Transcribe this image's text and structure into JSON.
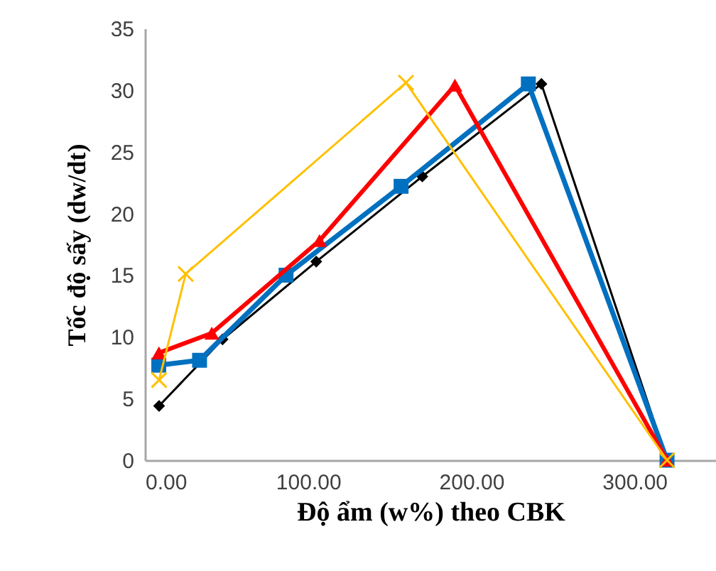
{
  "chart_data": {
    "type": "line",
    "xlabel": "Độ ẩm (w%) theo CBK",
    "ylabel": "Tốc độ sấy (dw/dt)",
    "xlim": [
      0,
      350
    ],
    "xticks": [
      {
        "value": 0,
        "label": "0.00"
      },
      {
        "value": 100,
        "label": "100.00"
      },
      {
        "value": 200,
        "label": "200.00"
      },
      {
        "value": 300,
        "label": "300.00"
      }
    ],
    "ylim": [
      0,
      35
    ],
    "yticks": [
      0,
      5,
      10,
      15,
      20,
      25,
      30,
      35
    ],
    "grid": false,
    "series": [
      {
        "color": "#000000",
        "marker": "diamond",
        "x": [
          8.7,
          47.6,
          105,
          170,
          243,
          320
        ],
        "values": [
          4.4,
          9.8,
          16.1,
          23,
          30.5,
          0
        ]
      },
      {
        "color": "#0070c0",
        "marker": "square",
        "x": [
          8.5,
          33.5,
          86.5,
          157,
          235,
          320
        ],
        "values": [
          7.7,
          8.1,
          15,
          22.2,
          30.5,
          0
        ]
      },
      {
        "color": "#ff0000",
        "marker": "triangle",
        "x": [
          8.6,
          41,
          107,
          190,
          320
        ],
        "values": [
          8.7,
          10.3,
          17.8,
          30.4,
          0
        ]
      },
      {
        "color": "#ffc000",
        "marker": "cross",
        "x": [
          8.7,
          25,
          160,
          320
        ],
        "values": [
          6.5,
          15.1,
          30.6,
          0
        ]
      }
    ]
  }
}
